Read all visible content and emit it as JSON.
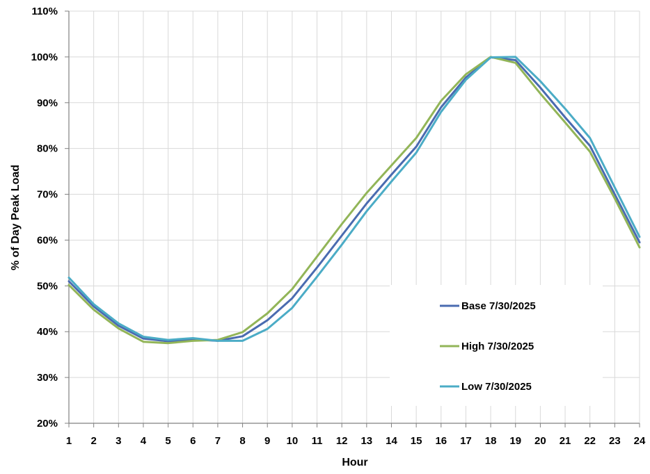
{
  "chart_data": {
    "type": "line",
    "title": "",
    "xlabel": "Hour",
    "ylabel": "% of Day Peak Load",
    "x": [
      1,
      2,
      3,
      4,
      5,
      6,
      7,
      8,
      9,
      10,
      11,
      12,
      13,
      14,
      15,
      16,
      17,
      18,
      19,
      20,
      21,
      22,
      23,
      24
    ],
    "x_tick_labels": [
      "1",
      "2",
      "3",
      "4",
      "5",
      "6",
      "7",
      "8",
      "9",
      "10",
      "11",
      "12",
      "13",
      "14",
      "15",
      "16",
      "17",
      "18",
      "19",
      "20",
      "21",
      "22",
      "23",
      "24"
    ],
    "ylim": [
      20,
      110
    ],
    "y_ticks": [
      20,
      30,
      40,
      50,
      60,
      70,
      80,
      90,
      100,
      110
    ],
    "y_tick_labels": [
      "20%",
      "30%",
      "40%",
      "50%",
      "60%",
      "70%",
      "80%",
      "90%",
      "100%",
      "110%"
    ],
    "grid": true,
    "legend_position": "bottom-right",
    "series": [
      {
        "name": "Base 7/30/2025",
        "color": "#4a6bb0",
        "values": [
          51.0,
          45.5,
          41.3,
          38.5,
          37.9,
          38.3,
          38.0,
          39.0,
          42.5,
          47.3,
          54.0,
          61.0,
          68.0,
          74.3,
          80.4,
          89.0,
          95.5,
          99.9,
          99.3,
          93.3,
          86.8,
          80.6,
          70.0,
          59.5
        ]
      },
      {
        "name": "High 7/30/2025",
        "color": "#92b558",
        "values": [
          50.2,
          44.8,
          40.7,
          37.8,
          37.5,
          38.0,
          38.2,
          39.9,
          44.0,
          49.3,
          56.4,
          63.5,
          70.3,
          76.3,
          82.3,
          90.4,
          96.2,
          100.0,
          98.7,
          92.0,
          85.7,
          79.3,
          69.1,
          58.4
        ]
      },
      {
        "name": "Low 7/30/2025",
        "color": "#4bacc6",
        "values": [
          51.8,
          46.0,
          41.8,
          38.9,
          38.2,
          38.6,
          38.0,
          38.0,
          40.6,
          45.2,
          52.0,
          59.0,
          66.3,
          72.8,
          79.1,
          88.0,
          95.0,
          99.9,
          100.0,
          94.7,
          88.7,
          82.3,
          71.5,
          60.7
        ]
      }
    ]
  }
}
